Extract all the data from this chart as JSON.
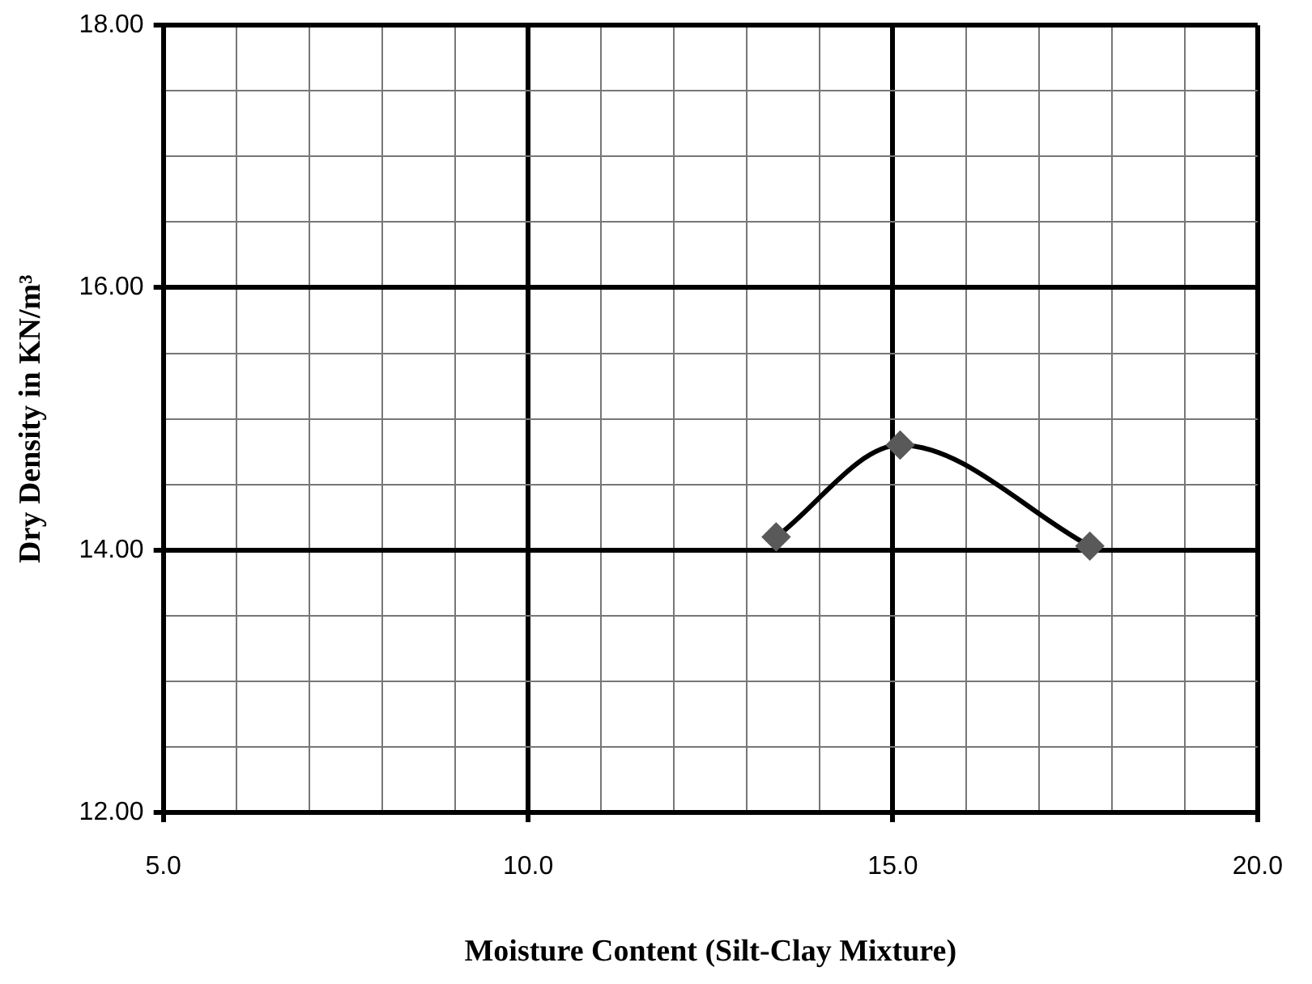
{
  "chart_data": {
    "type": "line",
    "xlabel": "Moisture Content (Silt-Clay Mixture)",
    "ylabel": "Dry Density in KN/m³",
    "x": [
      13.4,
      15.1,
      17.7
    ],
    "series": [
      {
        "color": "#000000",
        "values": [
          14.1,
          14.8,
          14.03
        ]
      }
    ],
    "xlim": [
      5,
      20
    ],
    "ylim": [
      12,
      18
    ],
    "xticks": [
      {
        "value": 5,
        "label": "5.0"
      },
      {
        "value": 6,
        "label": null
      },
      {
        "value": 7,
        "label": null
      },
      {
        "value": 8,
        "label": null
      },
      {
        "value": 9,
        "label": null
      },
      {
        "value": 10,
        "label": "10.0"
      },
      {
        "value": 11,
        "label": null
      },
      {
        "value": 12,
        "label": null
      },
      {
        "value": 13,
        "label": null
      },
      {
        "value": 14,
        "label": null
      },
      {
        "value": 15,
        "label": "15.0"
      },
      {
        "value": 16,
        "label": null
      },
      {
        "value": 17,
        "label": null
      },
      {
        "value": 18,
        "label": null
      },
      {
        "value": 19,
        "label": null
      },
      {
        "value": 20,
        "label": "20.0"
      }
    ],
    "yticks": [
      {
        "value": 12,
        "label": "12.00"
      },
      {
        "value": 12.5,
        "label": null
      },
      {
        "value": 13,
        "label": null
      },
      {
        "value": 13.5,
        "label": null
      },
      {
        "value": 14,
        "label": "14.00"
      },
      {
        "value": 14.5,
        "label": null
      },
      {
        "value": 15,
        "label": null
      },
      {
        "value": 15.5,
        "label": null
      },
      {
        "value": 16,
        "label": "16.00"
      },
      {
        "value": 16.5,
        "label": null
      },
      {
        "value": 17,
        "label": null
      },
      {
        "value": 17.5,
        "label": null
      },
      {
        "value": 18,
        "label": "18.00"
      }
    ],
    "grid": true,
    "legend": false,
    "marker": "diamond",
    "line_style": "solid"
  }
}
